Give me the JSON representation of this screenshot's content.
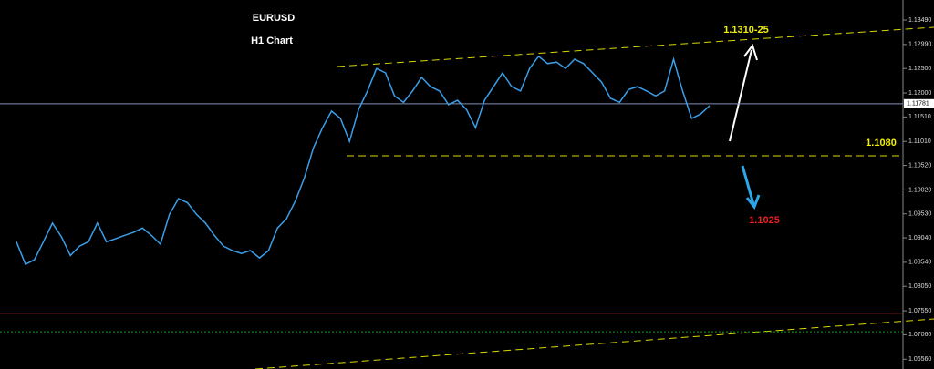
{
  "chart_data": {
    "type": "line",
    "title": "EURUSD",
    "subtitle": "H1 Chart",
    "annotations": [
      "1.1310-25",
      "1.1080",
      "1.1025"
    ],
    "categories": [
      null,
      null,
      null,
      null,
      null,
      null,
      null,
      null,
      null,
      null,
      null,
      null,
      null,
      null,
      null,
      null,
      null,
      null,
      null,
      null,
      null,
      null,
      null,
      null,
      null,
      null,
      null,
      null,
      null,
      null,
      null,
      null,
      null,
      null,
      null,
      null,
      null,
      null,
      null,
      null,
      null,
      null,
      null,
      null,
      null,
      null,
      null,
      null,
      null,
      null,
      null,
      null,
      null,
      null,
      null,
      null,
      null,
      null,
      null,
      null,
      null,
      null,
      null,
      null,
      null,
      null,
      null,
      null,
      null,
      null,
      null,
      null,
      null,
      null,
      null,
      null,
      null,
      null
    ],
    "series": [
      {
        "name": "EURUSD",
        "color": "#3a9ee8",
        "values": [
          1.0896,
          1.085,
          1.0859,
          1.0896,
          1.0934,
          1.0906,
          1.0868,
          1.0887,
          1.0896,
          1.0934,
          1.0896,
          1.0902,
          1.0909,
          1.0915,
          1.0924,
          1.0909,
          1.0891,
          1.0952,
          1.0984,
          1.0976,
          1.0952,
          1.0934,
          1.0909,
          1.0887,
          1.0878,
          1.0872,
          1.0878,
          1.0863,
          1.0878,
          1.0924,
          1.0943,
          1.098,
          1.1027,
          1.1088,
          1.1129,
          1.1163,
          1.1148,
          1.1101,
          1.1166,
          1.1204,
          1.125,
          1.1241,
          1.1194,
          1.1181,
          1.1204,
          1.1232,
          1.1213,
          1.1204,
          1.1176,
          1.1185,
          1.1166,
          1.1129,
          1.1185,
          1.1213,
          1.1241,
          1.1213,
          1.1204,
          1.125,
          1.1275,
          1.126,
          1.1263,
          1.125,
          1.1269,
          1.126,
          1.1241,
          1.1222,
          1.1189,
          1.1181,
          1.1207,
          1.1213,
          1.1204,
          1.1194,
          1.1204,
          1.1269,
          1.1204,
          1.1148,
          1.1157,
          1.1174
        ]
      }
    ],
    "levels": [
      {
        "value": 1.11781,
        "label": "1.11781",
        "color": "#7f8fb8"
      },
      {
        "value": 1.075,
        "color": "#e02828"
      },
      {
        "value": 1.0712,
        "color": "#1f9a1f"
      }
    ],
    "ylim": [
      1.0636,
      1.139
    ],
    "yticks": [
      {
        "value": 1.1349,
        "label": "1.13490"
      },
      {
        "value": 1.1299,
        "label": "1.12990"
      },
      {
        "value": 1.125,
        "label": "1.12500"
      },
      {
        "value": 1.12,
        "label": "1.12000"
      },
      {
        "value": 1.1151,
        "label": "1.11510"
      },
      {
        "value": 1.1101,
        "label": "1.11010"
      },
      {
        "value": 1.1052,
        "label": "1.10520"
      },
      {
        "value": 1.1002,
        "label": "1.10020"
      },
      {
        "value": 1.0953,
        "label": "1.09530"
      },
      {
        "value": 1.0904,
        "label": "1.09040"
      },
      {
        "value": 1.0854,
        "label": "1.08540"
      },
      {
        "value": 1.0805,
        "label": "1.08050"
      },
      {
        "value": 1.0755,
        "label": "1.07550"
      },
      {
        "value": 1.0706,
        "label": "1.07060"
      },
      {
        "value": 1.0656,
        "label": "1.06560"
      }
    ],
    "grid": false
  }
}
